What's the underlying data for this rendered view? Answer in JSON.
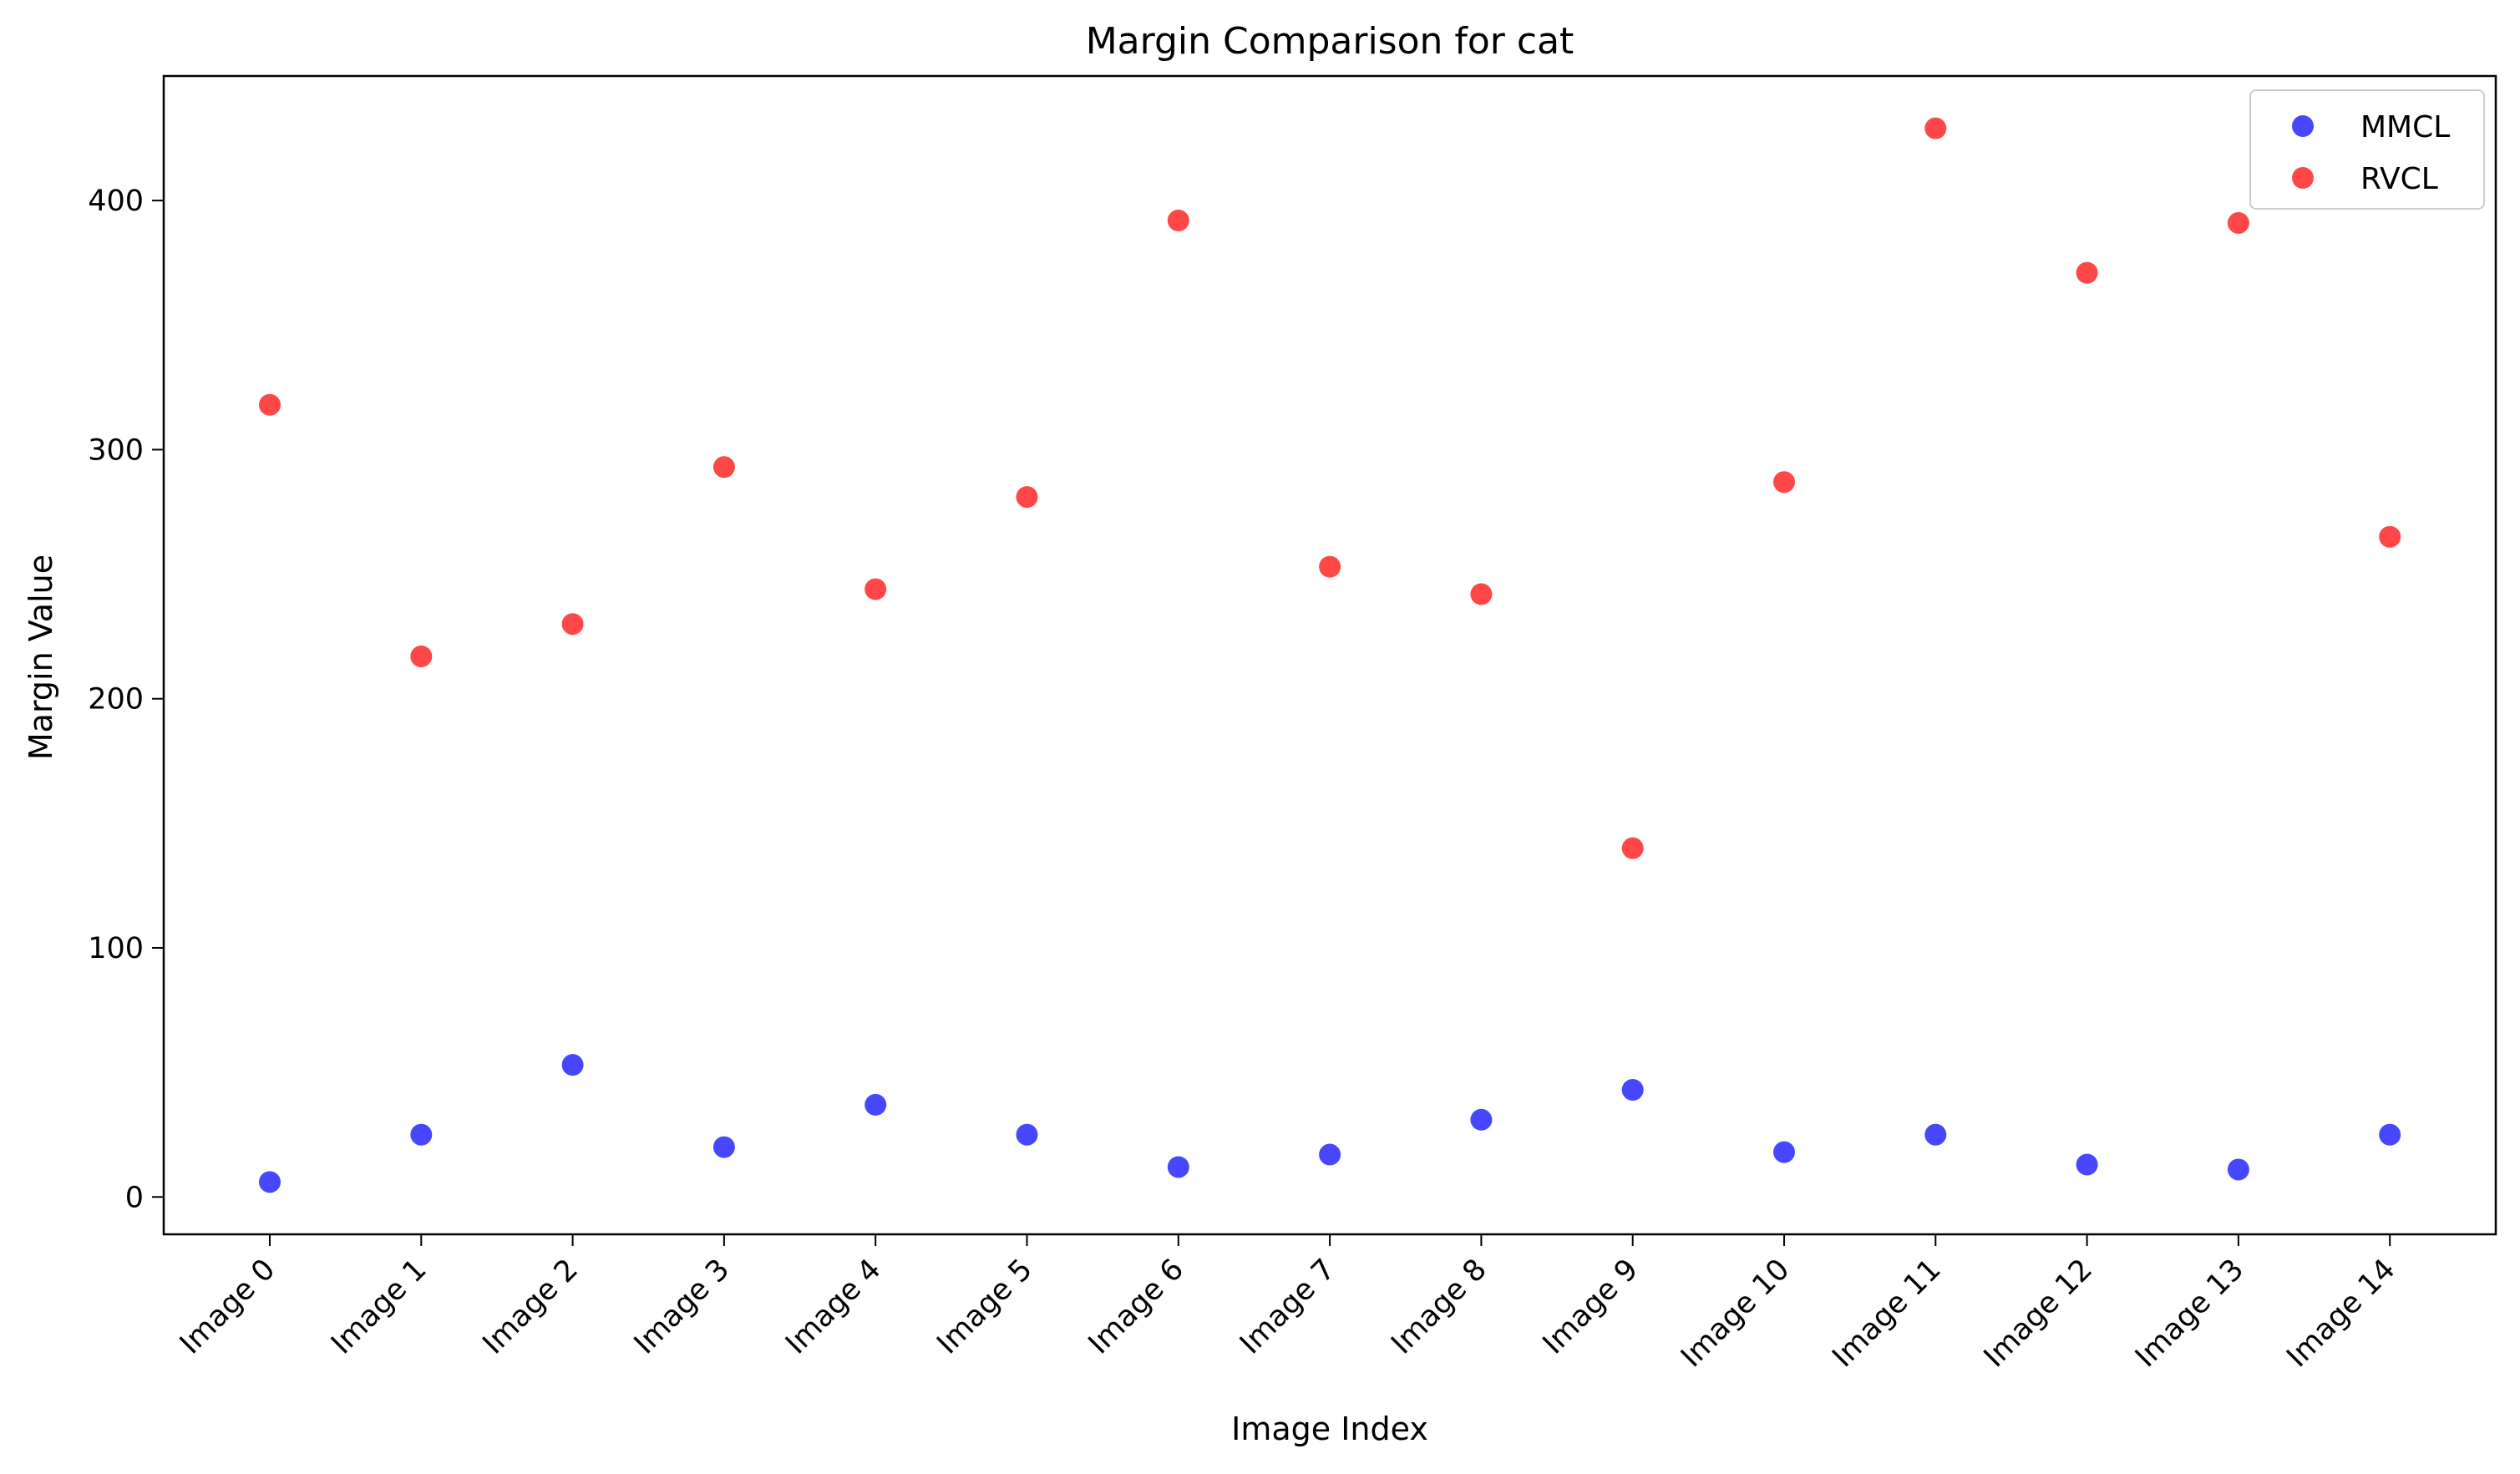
{
  "chart_data": {
    "type": "scatter",
    "title": "Margin Comparison for cat",
    "xlabel": "Image Index",
    "ylabel": "Margin Value",
    "categories": [
      "Image 0",
      "Image 1",
      "Image 2",
      "Image 3",
      "Image 4",
      "Image 5",
      "Image 6",
      "Image 7",
      "Image 8",
      "Image 9",
      "Image 10",
      "Image 11",
      "Image 12",
      "Image 13",
      "Image 14"
    ],
    "ylim": [
      -15,
      450
    ],
    "yticks": [
      0,
      100,
      200,
      300,
      400
    ],
    "grid": false,
    "legend_position": "top-right",
    "series": [
      {
        "name": "MMCL",
        "color": "#0000ff",
        "values": [
          6,
          25,
          53,
          20,
          37,
          25,
          12,
          17,
          31,
          43,
          18,
          25,
          13,
          11,
          25
        ]
      },
      {
        "name": "RVCL",
        "color": "#ff0000",
        "values": [
          318,
          217,
          230,
          293,
          244,
          281,
          392,
          253,
          242,
          140,
          287,
          429,
          371,
          391,
          265
        ]
      }
    ]
  }
}
